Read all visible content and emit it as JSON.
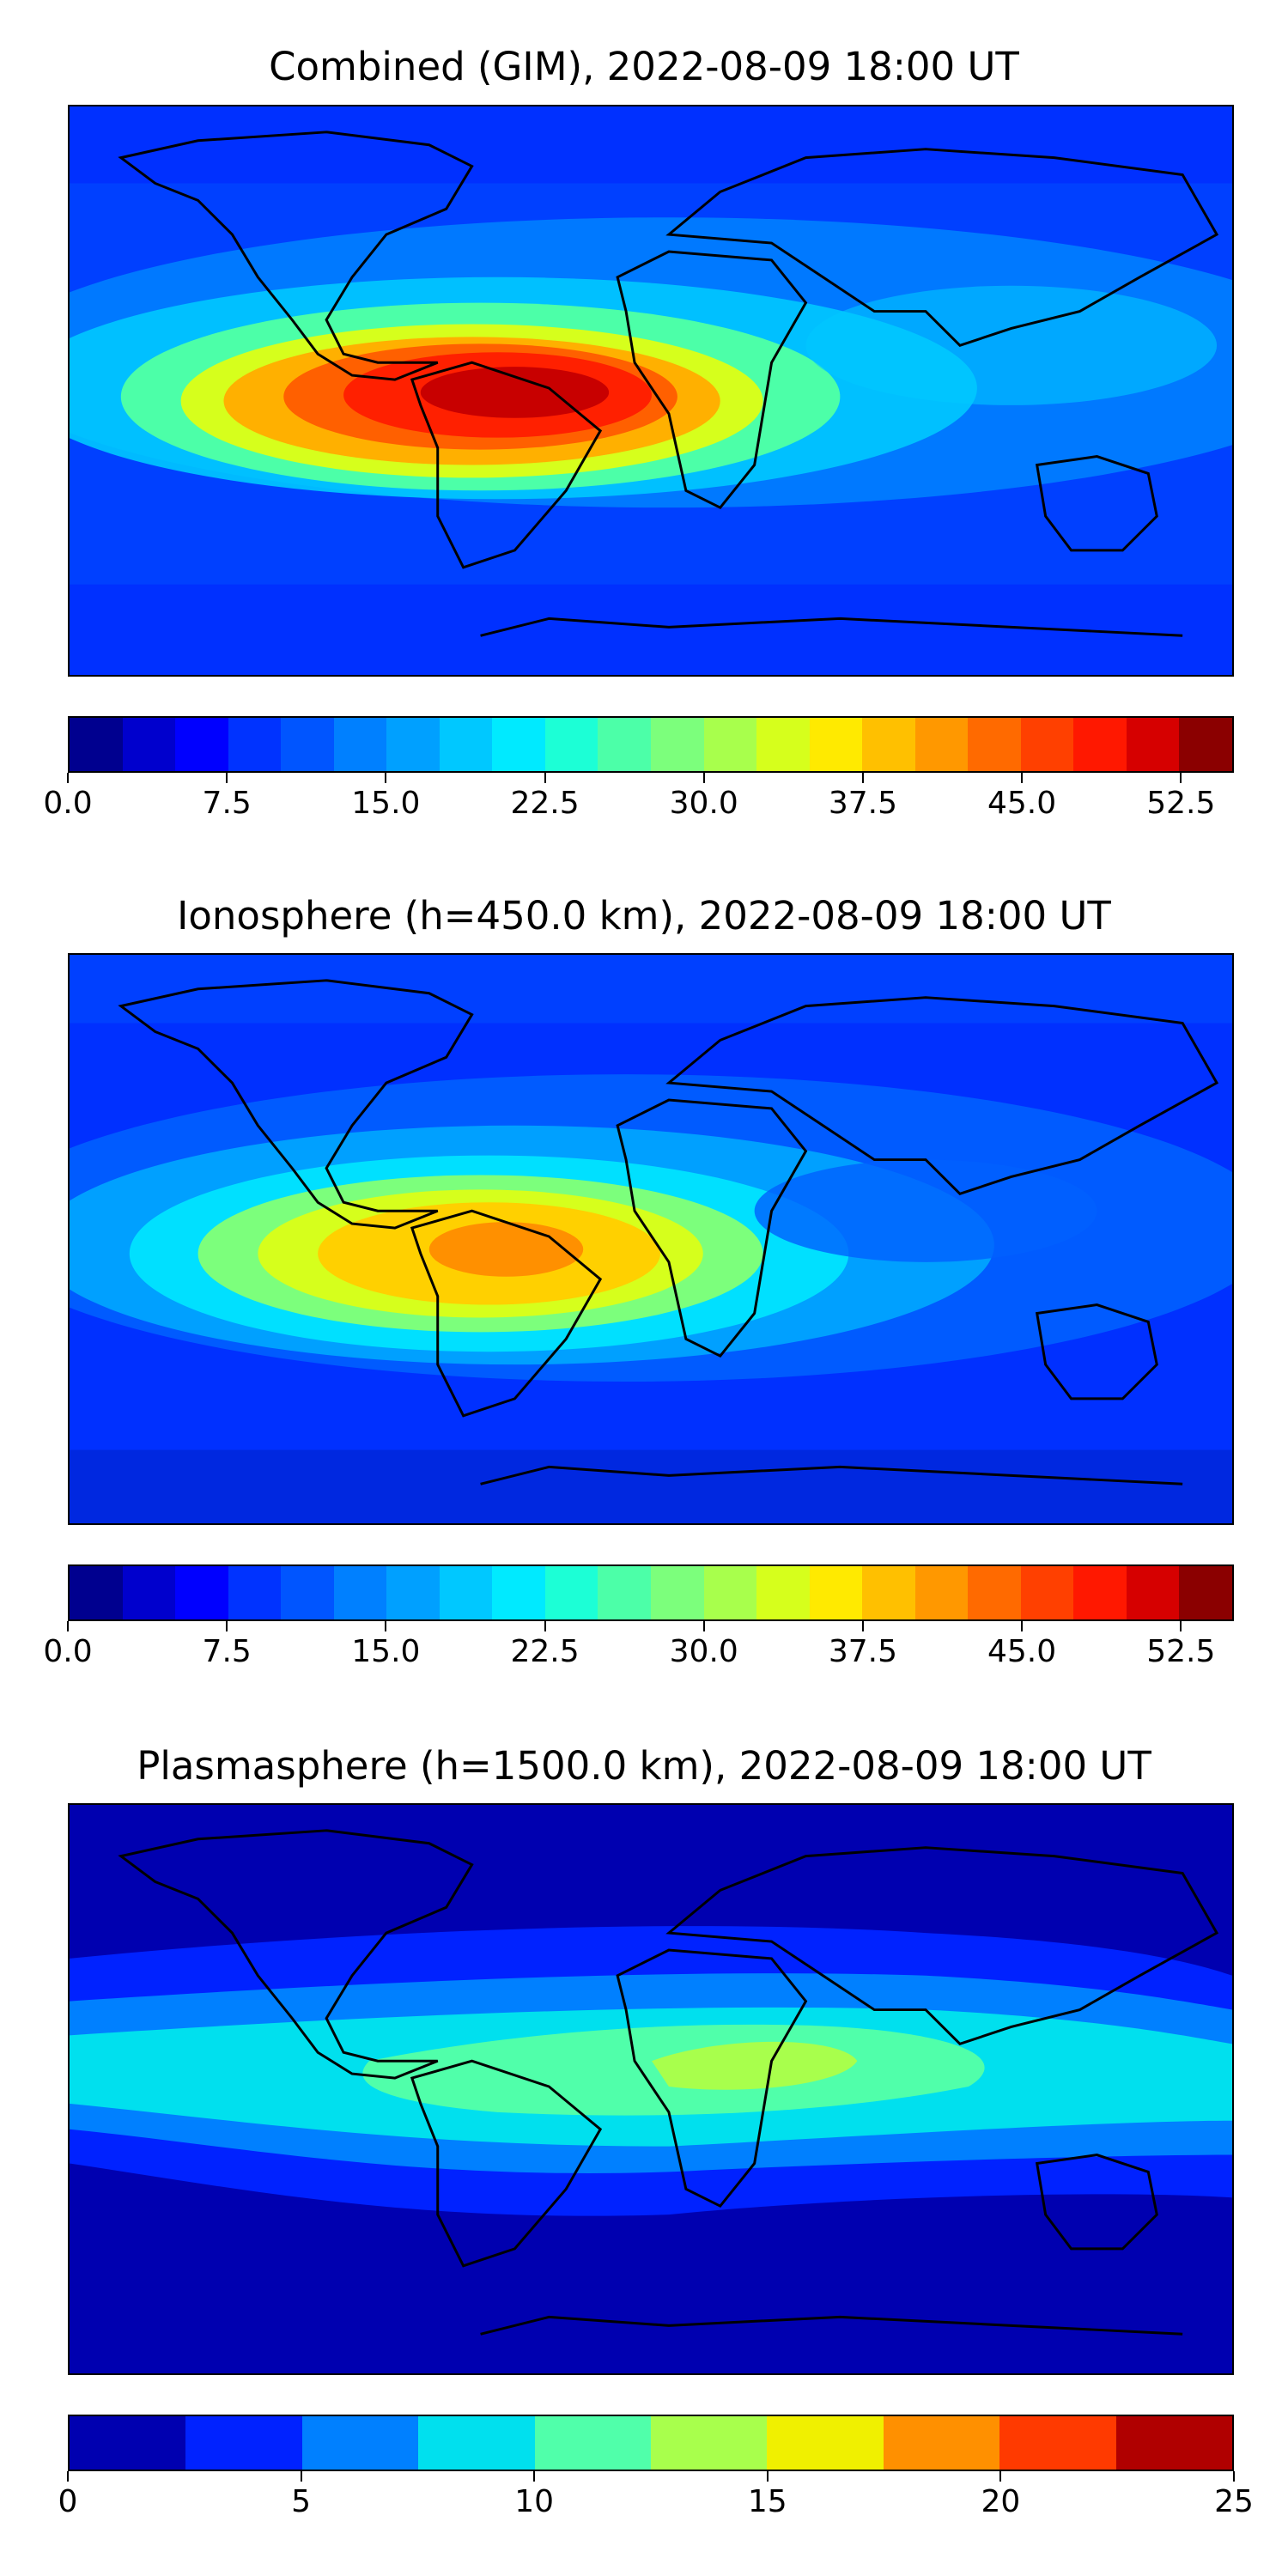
{
  "panels": [
    {
      "title": "Combined (GIM), 2022-08-09 18:00 UT",
      "variant": "combined",
      "colorbar": {
        "colors": [
          "#00008f",
          "#0000cd",
          "#0000ff",
          "#0033ff",
          "#0055ff",
          "#0080ff",
          "#00a0ff",
          "#00c8ff",
          "#00eaff",
          "#1cffd6",
          "#4cffa8",
          "#7cff7c",
          "#a8ff4c",
          "#d6ff1c",
          "#ffea00",
          "#ffc000",
          "#ff9800",
          "#ff6a00",
          "#ff4000",
          "#ff1800",
          "#d60000",
          "#8b0000"
        ],
        "ticks": [
          "0.0",
          "7.5",
          "15.0",
          "22.5",
          "30.0",
          "37.5",
          "45.0",
          "52.5"
        ],
        "min": 0,
        "max": 55,
        "tick_values": [
          0,
          7.5,
          15,
          22.5,
          30,
          37.5,
          45,
          52.5
        ]
      }
    },
    {
      "title": "Ionosphere  (h=450.0 km), 2022-08-09 18:00 UT",
      "variant": "ionosphere",
      "colorbar": {
        "colors": [
          "#00008f",
          "#0000cd",
          "#0000ff",
          "#0033ff",
          "#0055ff",
          "#0080ff",
          "#00a0ff",
          "#00c8ff",
          "#00eaff",
          "#1cffd6",
          "#4cffa8",
          "#7cff7c",
          "#a8ff4c",
          "#d6ff1c",
          "#ffea00",
          "#ffc000",
          "#ff9800",
          "#ff6a00",
          "#ff4000",
          "#ff1800",
          "#d60000",
          "#8b0000"
        ],
        "ticks": [
          "0.0",
          "7.5",
          "15.0",
          "22.5",
          "30.0",
          "37.5",
          "45.0",
          "52.5"
        ],
        "min": 0,
        "max": 55,
        "tick_values": [
          0,
          7.5,
          15,
          22.5,
          30,
          37.5,
          45,
          52.5
        ]
      }
    },
    {
      "title": "Plasmasphere (h=1500.0 km), 2022-08-09 18:00 UT",
      "variant": "plasmasphere",
      "colorbar": {
        "colors": [
          "#0000b0",
          "#0022ff",
          "#0080ff",
          "#00e0ee",
          "#50ffaa",
          "#a8ff4c",
          "#f0f000",
          "#ff9000",
          "#ff3a00",
          "#b00000"
        ],
        "ticks": [
          "0",
          "5",
          "10",
          "15",
          "20",
          "25"
        ],
        "min": 0,
        "max": 25,
        "tick_values": [
          0,
          5,
          10,
          15,
          20,
          25
        ]
      }
    }
  ]
}
